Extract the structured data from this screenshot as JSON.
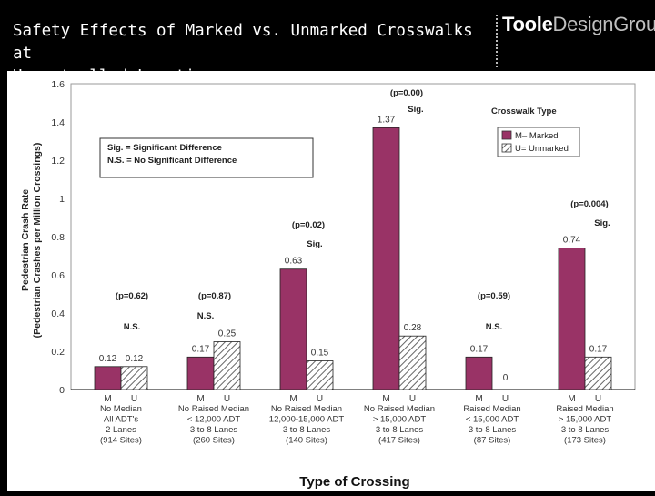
{
  "slide": {
    "title": "Safety Effects of Marked vs. Unmarked Crosswalks at\nUncontrolled Locations:",
    "logo_bold": "Toole",
    "logo_light": "DesignGroup"
  },
  "chart_data": {
    "type": "bar",
    "title": "",
    "xlabel": "Type of Crossing",
    "ylabel": "Pedestrian Crash Rate",
    "ylabel2": "(Pedestrian Crashes per Million Crossings)",
    "ylim": [
      0,
      1.6
    ],
    "yticks": [
      "0",
      "0.2",
      "0.4",
      "0.6",
      "0.8",
      "1",
      "1.2",
      "1.4",
      "1.6"
    ],
    "grid": false,
    "legend_title": "Crosswalk Type",
    "legend_position": "top-right",
    "note_lines": [
      "Sig. = Significant Difference",
      "N.S. = No Significant Difference"
    ],
    "categories": [
      [
        "No Median",
        "All ADT's",
        "2 Lanes",
        "(914 Sites)"
      ],
      [
        "No Raised Median",
        "< 12,000 ADT",
        "3 to 8 Lanes",
        "(260 Sites)"
      ],
      [
        "No Raised Median",
        "12,000-15,000 ADT",
        "3 to 8 Lanes",
        "(140 Sites)"
      ],
      [
        "No Raised Median",
        "> 15,000 ADT",
        "3 to 8 Lanes",
        "(417 Sites)"
      ],
      [
        "Raised Median",
        "< 15,000 ADT",
        "3 to 8 Lanes",
        "(87 Sites)"
      ],
      [
        "Raised Median",
        "> 15,000 ADT",
        "3 to 8 Lanes",
        "(173 Sites)"
      ]
    ],
    "series": [
      {
        "name": "M– Marked",
        "short": "M",
        "color": "#993366",
        "values": [
          0.12,
          0.17,
          0.63,
          1.37,
          0.17,
          0.74
        ]
      },
      {
        "name": "U= Unmarked",
        "short": "U",
        "color": "#ffffff",
        "hatch": true,
        "values": [
          0.12,
          0.25,
          0.15,
          0.28,
          0,
          0.17
        ]
      }
    ],
    "value_labels": [
      [
        "0.12",
        "0.17",
        "0.63",
        "1.37",
        "0.17",
        "0.74"
      ],
      [
        "0.12",
        "0.25",
        "0.15",
        "0.28",
        "0",
        "0.17"
      ]
    ],
    "annotations": [
      {
        "p": "(p=0.62)",
        "result": "N.S."
      },
      {
        "p": "(p=0.87)",
        "result": "N.S."
      },
      {
        "p": "(p=0.02)",
        "result": "Sig."
      },
      {
        "p": "(p=0.00)",
        "result": "Sig."
      },
      {
        "p": "(p=0.59)",
        "result": "N.S."
      },
      {
        "p": "(p=0.004)",
        "result": "Sig."
      }
    ]
  }
}
